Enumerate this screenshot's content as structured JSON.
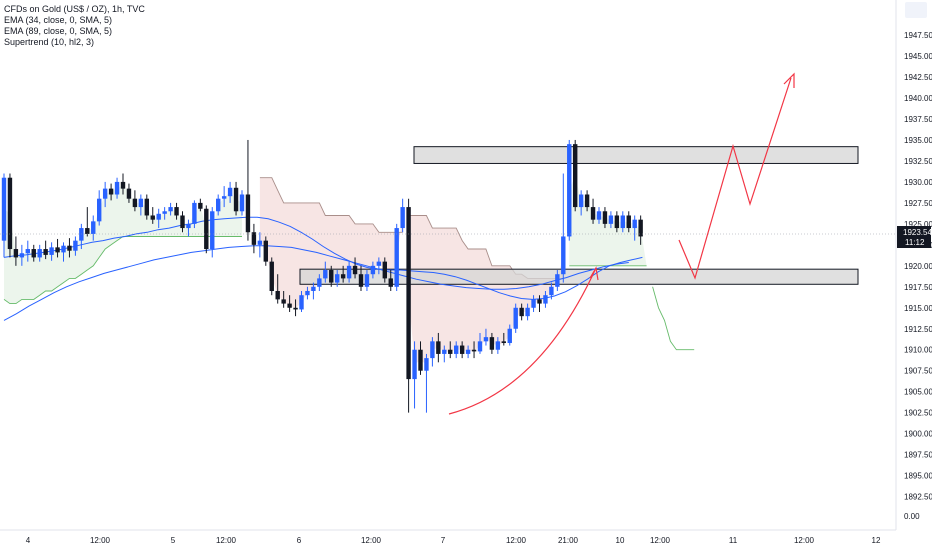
{
  "chart_data": {
    "type": "candlestick",
    "title": "CFDs on Gold (US$ / OZ), 1h, TVC",
    "indicators": [
      "EMA (34, close, 0, SMA, 5)",
      "EMA (89, close, 0, SMA, 5)",
      "Supertrend (10, hl2, 3)"
    ],
    "y_axis": {
      "ticks": [
        "1947.50",
        "1945.00",
        "1942.50",
        "1940.00",
        "1937.50",
        "1935.00",
        "1932.50",
        "1930.00",
        "1927.50",
        "1925.00",
        "1922.50",
        "1920.00",
        "1917.50",
        "1915.00",
        "1912.50",
        "1910.00",
        "1907.50",
        "1905.00",
        "1902.50",
        "1900.00",
        "1897.50",
        "1895.00",
        "1892.50"
      ],
      "extra_label": "0.00",
      "range": [
        1890.9,
        1948.7
      ]
    },
    "x_axis": {
      "ticks": [
        "4",
        "12:00",
        "5",
        "12:00",
        "6",
        "12:00",
        "7",
        "12:00",
        "21:00",
        "10",
        "12:00",
        "11",
        "12:00",
        "12"
      ]
    },
    "price_label": {
      "price": "1923.54",
      "time": "11:12"
    },
    "candles": [
      {
        "o": 1923.0,
        "h": 1931.0,
        "l": 1921.0,
        "c": 1930.5
      },
      {
        "o": 1930.5,
        "h": 1931.0,
        "l": 1921.0,
        "c": 1922.0
      },
      {
        "o": 1922.0,
        "h": 1923.5,
        "l": 1920.0,
        "c": 1921.0
      },
      {
        "o": 1921.0,
        "h": 1922.5,
        "l": 1920.0,
        "c": 1921.5
      },
      {
        "o": 1921.5,
        "h": 1923.0,
        "l": 1920.5,
        "c": 1922.0
      },
      {
        "o": 1922.0,
        "h": 1922.5,
        "l": 1920.5,
        "c": 1921.0
      },
      {
        "o": 1921.0,
        "h": 1922.5,
        "l": 1920.5,
        "c": 1922.0
      },
      {
        "o": 1922.0,
        "h": 1923.0,
        "l": 1920.8,
        "c": 1921.3
      },
      {
        "o": 1921.3,
        "h": 1922.8,
        "l": 1920.6,
        "c": 1922.2
      },
      {
        "o": 1922.2,
        "h": 1923.2,
        "l": 1921.0,
        "c": 1921.6
      },
      {
        "o": 1921.6,
        "h": 1922.8,
        "l": 1920.5,
        "c": 1922.4
      },
      {
        "o": 1922.4,
        "h": 1923.3,
        "l": 1921.0,
        "c": 1921.8
      },
      {
        "o": 1921.8,
        "h": 1923.5,
        "l": 1921.2,
        "c": 1923.0
      },
      {
        "o": 1923.0,
        "h": 1925.0,
        "l": 1922.0,
        "c": 1924.5
      },
      {
        "o": 1924.5,
        "h": 1927.0,
        "l": 1923.5,
        "c": 1923.8
      },
      {
        "o": 1923.8,
        "h": 1926.0,
        "l": 1923.0,
        "c": 1925.3
      },
      {
        "o": 1925.3,
        "h": 1929.0,
        "l": 1924.8,
        "c": 1928.0
      },
      {
        "o": 1928.0,
        "h": 1930.0,
        "l": 1927.0,
        "c": 1929.2
      },
      {
        "o": 1929.2,
        "h": 1929.8,
        "l": 1927.8,
        "c": 1928.5
      },
      {
        "o": 1928.5,
        "h": 1930.5,
        "l": 1928.0,
        "c": 1930.0
      },
      {
        "o": 1930.0,
        "h": 1931.0,
        "l": 1928.5,
        "c": 1929.2
      },
      {
        "o": 1929.2,
        "h": 1929.8,
        "l": 1927.5,
        "c": 1928.0
      },
      {
        "o": 1928.0,
        "h": 1929.0,
        "l": 1926.5,
        "c": 1927.0
      },
      {
        "o": 1927.0,
        "h": 1928.5,
        "l": 1926.0,
        "c": 1928.0
      },
      {
        "o": 1928.0,
        "h": 1928.5,
        "l": 1925.5,
        "c": 1926.0
      },
      {
        "o": 1926.0,
        "h": 1927.0,
        "l": 1925.0,
        "c": 1925.5
      },
      {
        "o": 1925.5,
        "h": 1926.8,
        "l": 1924.5,
        "c": 1926.2
      },
      {
        "o": 1926.2,
        "h": 1927.0,
        "l": 1925.5,
        "c": 1926.5
      },
      {
        "o": 1926.5,
        "h": 1927.5,
        "l": 1926.0,
        "c": 1927.0
      },
      {
        "o": 1927.0,
        "h": 1927.5,
        "l": 1925.5,
        "c": 1926.0
      },
      {
        "o": 1926.0,
        "h": 1926.5,
        "l": 1924.0,
        "c": 1924.5
      },
      {
        "o": 1924.5,
        "h": 1925.5,
        "l": 1923.5,
        "c": 1925.0
      },
      {
        "o": 1925.0,
        "h": 1927.8,
        "l": 1924.5,
        "c": 1927.5
      },
      {
        "o": 1927.5,
        "h": 1928.0,
        "l": 1926.5,
        "c": 1926.8
      },
      {
        "o": 1926.8,
        "h": 1927.2,
        "l": 1921.5,
        "c": 1922.0
      },
      {
        "o": 1922.0,
        "h": 1927.0,
        "l": 1921.0,
        "c": 1926.5
      },
      {
        "o": 1926.5,
        "h": 1928.5,
        "l": 1926.0,
        "c": 1928.0
      },
      {
        "o": 1928.0,
        "h": 1929.5,
        "l": 1927.0,
        "c": 1928.3
      },
      {
        "o": 1928.3,
        "h": 1930.0,
        "l": 1927.5,
        "c": 1929.3
      },
      {
        "o": 1929.3,
        "h": 1930.0,
        "l": 1926.0,
        "c": 1926.5
      },
      {
        "o": 1926.5,
        "h": 1929.0,
        "l": 1926.0,
        "c": 1928.5
      },
      {
        "o": 1928.5,
        "h": 1935.0,
        "l": 1923.0,
        "c": 1924.0
      },
      {
        "o": 1924.0,
        "h": 1925.0,
        "l": 1921.5,
        "c": 1922.5
      },
      {
        "o": 1922.5,
        "h": 1924.0,
        "l": 1921.0,
        "c": 1923.0
      },
      {
        "o": 1923.0,
        "h": 1923.5,
        "l": 1920.0,
        "c": 1920.5
      },
      {
        "o": 1920.5,
        "h": 1921.0,
        "l": 1916.5,
        "c": 1917.0
      },
      {
        "o": 1917.0,
        "h": 1919.0,
        "l": 1915.5,
        "c": 1916.0
      },
      {
        "o": 1916.0,
        "h": 1917.0,
        "l": 1915.0,
        "c": 1915.5
      },
      {
        "o": 1915.5,
        "h": 1916.5,
        "l": 1914.5,
        "c": 1915.0
      },
      {
        "o": 1915.0,
        "h": 1916.0,
        "l": 1914.0,
        "c": 1914.8
      },
      {
        "o": 1914.8,
        "h": 1917.0,
        "l": 1914.5,
        "c": 1916.5
      },
      {
        "o": 1916.5,
        "h": 1917.5,
        "l": 1916.0,
        "c": 1917.0
      },
      {
        "o": 1917.0,
        "h": 1918.0,
        "l": 1916.0,
        "c": 1917.5
      },
      {
        "o": 1917.5,
        "h": 1919.0,
        "l": 1917.0,
        "c": 1918.5
      },
      {
        "o": 1918.5,
        "h": 1920.5,
        "l": 1918.0,
        "c": 1919.5
      },
      {
        "o": 1919.5,
        "h": 1920.0,
        "l": 1917.5,
        "c": 1918.0
      },
      {
        "o": 1918.0,
        "h": 1919.5,
        "l": 1917.5,
        "c": 1919.0
      },
      {
        "o": 1919.0,
        "h": 1920.0,
        "l": 1918.0,
        "c": 1918.5
      },
      {
        "o": 1918.5,
        "h": 1920.5,
        "l": 1918.0,
        "c": 1920.0
      },
      {
        "o": 1920.0,
        "h": 1921.0,
        "l": 1918.5,
        "c": 1919.0
      },
      {
        "o": 1919.0,
        "h": 1920.0,
        "l": 1917.0,
        "c": 1917.5
      },
      {
        "o": 1917.5,
        "h": 1919.5,
        "l": 1917.0,
        "c": 1919.0
      },
      {
        "o": 1919.0,
        "h": 1920.5,
        "l": 1918.5,
        "c": 1920.0
      },
      {
        "o": 1920.0,
        "h": 1921.0,
        "l": 1919.0,
        "c": 1920.5
      },
      {
        "o": 1920.5,
        "h": 1921.0,
        "l": 1918.0,
        "c": 1918.5
      },
      {
        "o": 1918.5,
        "h": 1919.5,
        "l": 1917.0,
        "c": 1917.5
      },
      {
        "o": 1917.5,
        "h": 1925.0,
        "l": 1917.0,
        "c": 1924.5
      },
      {
        "o": 1924.5,
        "h": 1928.0,
        "l": 1924.0,
        "c": 1927.0
      },
      {
        "o": 1927.0,
        "h": 1928.0,
        "l": 1902.5,
        "c": 1906.5
      },
      {
        "o": 1906.5,
        "h": 1911.0,
        "l": 1903.0,
        "c": 1910.0
      },
      {
        "o": 1910.0,
        "h": 1911.0,
        "l": 1907.0,
        "c": 1907.5
      },
      {
        "o": 1907.5,
        "h": 1909.5,
        "l": 1902.5,
        "c": 1909.0
      },
      {
        "o": 1909.0,
        "h": 1911.5,
        "l": 1908.0,
        "c": 1911.0
      },
      {
        "o": 1911.0,
        "h": 1912.0,
        "l": 1908.5,
        "c": 1909.5
      },
      {
        "o": 1909.5,
        "h": 1910.5,
        "l": 1908.5,
        "c": 1910.0
      },
      {
        "o": 1910.0,
        "h": 1911.0,
        "l": 1909.0,
        "c": 1909.5
      },
      {
        "o": 1909.5,
        "h": 1911.0,
        "l": 1909.0,
        "c": 1910.5
      },
      {
        "o": 1910.5,
        "h": 1911.0,
        "l": 1909.0,
        "c": 1909.5
      },
      {
        "o": 1909.5,
        "h": 1910.5,
        "l": 1909.0,
        "c": 1910.0
      },
      {
        "o": 1910.0,
        "h": 1911.0,
        "l": 1909.0,
        "c": 1909.8
      },
      {
        "o": 1909.8,
        "h": 1912.0,
        "l": 1909.5,
        "c": 1911.0
      },
      {
        "o": 1911.0,
        "h": 1912.5,
        "l": 1910.5,
        "c": 1911.5
      },
      {
        "o": 1911.5,
        "h": 1912.0,
        "l": 1909.5,
        "c": 1910.0
      },
      {
        "o": 1910.0,
        "h": 1911.5,
        "l": 1909.5,
        "c": 1911.0
      },
      {
        "o": 1911.0,
        "h": 1912.0,
        "l": 1910.5,
        "c": 1910.8
      },
      {
        "o": 1910.8,
        "h": 1913.0,
        "l": 1910.5,
        "c": 1912.5
      },
      {
        "o": 1912.5,
        "h": 1915.5,
        "l": 1912.0,
        "c": 1915.0
      },
      {
        "o": 1915.0,
        "h": 1915.5,
        "l": 1913.5,
        "c": 1914.0
      },
      {
        "o": 1914.0,
        "h": 1915.5,
        "l": 1913.5,
        "c": 1915.0
      },
      {
        "o": 1915.0,
        "h": 1916.5,
        "l": 1914.5,
        "c": 1916.0
      },
      {
        "o": 1916.0,
        "h": 1916.5,
        "l": 1914.5,
        "c": 1915.5
      },
      {
        "o": 1915.5,
        "h": 1917.0,
        "l": 1915.0,
        "c": 1916.5
      },
      {
        "o": 1916.5,
        "h": 1918.0,
        "l": 1916.0,
        "c": 1917.5
      },
      {
        "o": 1917.5,
        "h": 1919.5,
        "l": 1917.0,
        "c": 1919.0
      },
      {
        "o": 1919.0,
        "h": 1931.0,
        "l": 1918.0,
        "c": 1923.5
      },
      {
        "o": 1923.5,
        "h": 1935.0,
        "l": 1923.0,
        "c": 1934.5
      },
      {
        "o": 1934.5,
        "h": 1935.0,
        "l": 1926.5,
        "c": 1927.0
      },
      {
        "o": 1927.0,
        "h": 1929.0,
        "l": 1926.0,
        "c": 1928.5
      },
      {
        "o": 1928.5,
        "h": 1929.0,
        "l": 1926.5,
        "c": 1927.0
      },
      {
        "o": 1927.0,
        "h": 1928.0,
        "l": 1925.0,
        "c": 1925.5
      },
      {
        "o": 1925.5,
        "h": 1927.0,
        "l": 1925.0,
        "c": 1926.5
      },
      {
        "o": 1926.5,
        "h": 1927.0,
        "l": 1924.5,
        "c": 1925.0
      },
      {
        "o": 1925.0,
        "h": 1926.5,
        "l": 1924.5,
        "c": 1926.0
      },
      {
        "o": 1926.0,
        "h": 1926.5,
        "l": 1924.0,
        "c": 1924.5
      },
      {
        "o": 1924.5,
        "h": 1926.5,
        "l": 1924.0,
        "c": 1926.0
      },
      {
        "o": 1926.0,
        "h": 1926.5,
        "l": 1924.0,
        "c": 1924.5
      },
      {
        "o": 1924.5,
        "h": 1926.0,
        "l": 1923.0,
        "c": 1925.5
      },
      {
        "o": 1925.5,
        "h": 1926.0,
        "l": 1922.5,
        "c": 1923.5
      }
    ],
    "ema34": [
      1921,
      1921.2,
      1921.3,
      1921.5,
      1921.7,
      1921.9,
      1922.2,
      1922.5,
      1922.8,
      1923.0,
      1923.3,
      1923.5,
      1923.8,
      1924.0,
      1924.3,
      1924.5,
      1924.8,
      1925.0,
      1925.3,
      1925.5,
      1925.6,
      1925.7,
      1925.8,
      1925.8,
      1925.6,
      1925.2,
      1924.7,
      1924.0,
      1923.2,
      1922.3,
      1921.5,
      1920.8,
      1920.2,
      1919.8,
      1919.6,
      1919.5,
      1919.5,
      1919.4,
      1919.3,
      1919.2,
      1919.0,
      1918.7,
      1918.3,
      1917.8,
      1917.3,
      1916.8,
      1916.4,
      1916.1,
      1916.0,
      1916.1,
      1916.4,
      1916.9,
      1917.6,
      1918.4,
      1919.3,
      1920.0,
      1920.4,
      1920.7,
      1921.0
    ],
    "ema89": [
      1913.5,
      1914.3,
      1915.2,
      1916.0,
      1916.8,
      1917.5,
      1918.1,
      1918.6,
      1919.1,
      1919.5,
      1919.9,
      1920.3,
      1920.7,
      1921.0,
      1921.3,
      1921.6,
      1921.8,
      1922.0,
      1922.2,
      1922.3,
      1922.4,
      1922.4,
      1922.3,
      1922.2,
      1921.9,
      1921.6,
      1921.2,
      1920.8,
      1920.4,
      1920.0,
      1919.6,
      1919.2,
      1918.8,
      1918.4,
      1918.1,
      1917.8,
      1917.6,
      1917.4,
      1917.3,
      1917.2,
      1917.2,
      1917.3,
      1917.5,
      1917.8,
      1918.2,
      1918.6,
      1919.1,
      1919.5,
      1919.9,
      1920.2,
      1920.4
    ],
    "supertrend_bands": [
      {
        "trend": "up",
        "from": 0,
        "to": 40,
        "levels": [
          1916,
          1915.5,
          1915.5,
          1916,
          1916,
          1916,
          1916.5,
          1917,
          1917,
          1917.5,
          1918,
          1918.5,
          1918.5,
          1919,
          1919.5,
          1920,
          1921,
          1922,
          1922.5,
          1923,
          1923.5,
          1923.5,
          1923.5,
          1923.5,
          1923.5,
          1923.5,
          1923.5,
          1923.5,
          1923.5,
          1923.5,
          1923.5,
          1923.5,
          1923.5,
          1923.5,
          1923.5,
          1923.5,
          1923.5,
          1923.5,
          1923.5,
          1923.5,
          1923.5
        ]
      },
      {
        "trend": "down",
        "from": 43,
        "to": 67,
        "levels": [
          1930.5,
          1930.5,
          1930.5,
          1929,
          1927.5,
          1927.5,
          1927.5,
          1927.5,
          1927.5,
          1927.5,
          1927.5,
          1926,
          1926,
          1926,
          1926,
          1926,
          1925,
          1925,
          1925,
          1925,
          1924,
          1924,
          1924,
          1924,
          1924
        ]
      },
      {
        "trend": "down",
        "from": 68,
        "to": 94,
        "levels": [
          1926,
          1926,
          1926,
          1926,
          1924.5,
          1924.5,
          1924.5,
          1924.5,
          1924.5,
          1923,
          1922,
          1922,
          1922,
          1922,
          1920,
          1920,
          1920,
          1920,
          1919,
          1919,
          1918.5,
          1918.5,
          1918.5,
          1918.5,
          1918.5,
          1918.5,
          1918.5
        ]
      },
      {
        "trend": "up",
        "from": 95,
        "to": 108,
        "levels": [
          1920,
          1920,
          1920,
          1920,
          1920,
          1920,
          1920,
          1920,
          1920,
          1920,
          1920,
          1920,
          1920,
          1920
        ]
      },
      {
        "trend": "up",
        "from": 109,
        "to": 116,
        "levels": [
          1917.5,
          1915,
          1913.5,
          1911,
          1910,
          1910,
          1910,
          1910
        ]
      }
    ],
    "zones": [
      {
        "name": "resistance",
        "top": 1934.2,
        "bottom": 1932.2
      },
      {
        "name": "support",
        "top": 1919.6,
        "bottom": 1917.8
      }
    ],
    "colors": {
      "bull": "#2962ff",
      "bear": "#131722",
      "ema": "#2962ff",
      "up_fill": "#e9f3e9",
      "down_fill": "#f6e1df",
      "up_line": "#66bb6a",
      "down_line": "#a98e8a",
      "arrow": "#f23645",
      "zone_fill": "#d6d6d6"
    }
  }
}
